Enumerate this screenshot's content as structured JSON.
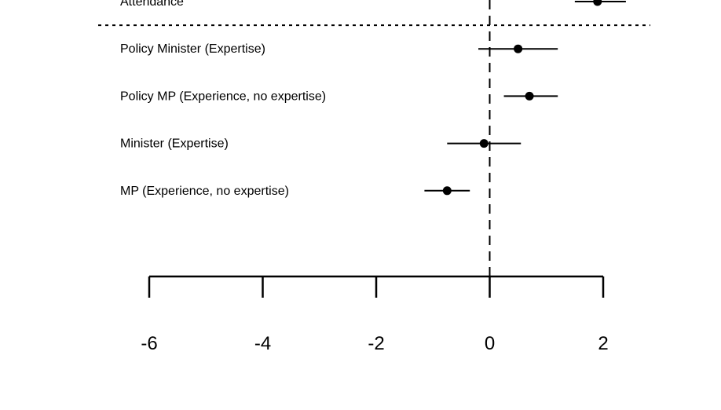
{
  "chart_data": {
    "type": "scatter",
    "title": "",
    "xlabel": "",
    "ylabel": "",
    "xlim": [
      -6,
      2
    ],
    "reference_line_x": 0,
    "x_ticks": [
      -6,
      -4,
      -2,
      0,
      2
    ],
    "x_tick_labels": [
      "-6",
      "-4",
      "-2",
      "0",
      "2"
    ],
    "groups": [
      {
        "rows": [
          {
            "label": "Attendance",
            "estimate": 1.9,
            "ci": [
              1.5,
              2.4
            ]
          }
        ]
      },
      {
        "rows": [
          {
            "label": "Policy Minister (Expertise)",
            "estimate": 0.5,
            "ci": [
              -0.2,
              1.2
            ]
          },
          {
            "label": "Policy MP (Experience, no expertise)",
            "estimate": 0.7,
            "ci": [
              0.25,
              1.2
            ]
          },
          {
            "label": "Minister (Expertise)",
            "estimate": -0.1,
            "ci": [
              -0.75,
              0.55
            ]
          },
          {
            "label": "MP (Experience, no expertise)",
            "estimate": -0.75,
            "ci": [
              -1.15,
              -0.35
            ]
          }
        ]
      }
    ],
    "grid": false,
    "legend": "none"
  }
}
